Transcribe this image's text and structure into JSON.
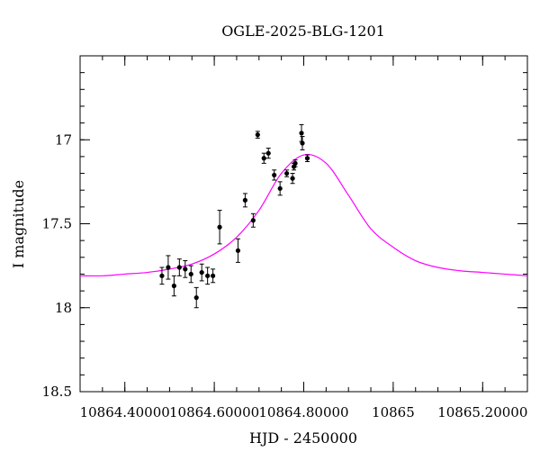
{
  "chart_data": {
    "type": "scatter",
    "title": "OGLE-2025-BLG-1201",
    "xlabel": "HJD - 2450000",
    "ylabel": "I magnitude",
    "xlim": [
      10864.3,
      10865.3
    ],
    "ylim": [
      18.5,
      16.5
    ],
    "y_inverted": true,
    "xticks": [
      10864.4,
      10864.6,
      10864.8,
      10865.0,
      10865.2
    ],
    "xtick_labels": [
      "10864.40000",
      "10864.60000",
      "10864.80000",
      "10865",
      "10865.20000"
    ],
    "yticks": [
      17,
      17.5,
      18,
      18.5
    ],
    "ytick_labels": [
      "17",
      "17.5",
      "18",
      "18.5"
    ],
    "grid": false,
    "series": [
      {
        "kind": "points_with_errorbars",
        "color": "#000000",
        "x": [
          10864.483,
          10864.497,
          10864.51,
          10864.522,
          10864.535,
          10864.548,
          10864.56,
          10864.572,
          10864.585,
          10864.597,
          10864.612,
          10864.653,
          10864.669,
          10864.687,
          10864.697,
          10864.711,
          10864.721,
          10864.734,
          10864.747,
          10864.762,
          10864.775,
          10864.778,
          10864.781,
          10864.795,
          10864.797,
          10864.808
        ],
        "y": [
          17.81,
          17.76,
          17.87,
          17.76,
          17.77,
          17.8,
          17.94,
          17.79,
          17.81,
          17.81,
          17.52,
          17.66,
          17.36,
          17.48,
          16.97,
          17.11,
          17.08,
          17.21,
          17.29,
          17.2,
          17.23,
          17.16,
          17.14,
          16.96,
          17.02,
          17.11
        ],
        "err": [
          0.05,
          0.07,
          0.06,
          0.05,
          0.05,
          0.05,
          0.06,
          0.05,
          0.05,
          0.04,
          0.1,
          0.07,
          0.04,
          0.04,
          0.02,
          0.03,
          0.03,
          0.03,
          0.04,
          0.02,
          0.03,
          0.02,
          0.02,
          0.05,
          0.04,
          0.02
        ]
      },
      {
        "kind": "model_curve",
        "color": "#ff00ff",
        "x": [
          10864.3,
          10864.35,
          10864.4,
          10864.45,
          10864.5,
          10864.55,
          10864.6,
          10864.65,
          10864.7,
          10864.75,
          10864.8,
          10864.85,
          10864.9,
          10864.95,
          10865.0,
          10865.05,
          10865.1,
          10865.15,
          10865.2,
          10865.25,
          10865.3
        ],
        "y": [
          17.81,
          17.81,
          17.8,
          17.79,
          17.77,
          17.74,
          17.68,
          17.58,
          17.42,
          17.2,
          17.09,
          17.14,
          17.33,
          17.53,
          17.64,
          17.72,
          17.76,
          17.78,
          17.79,
          17.8,
          17.81
        ]
      }
    ]
  }
}
